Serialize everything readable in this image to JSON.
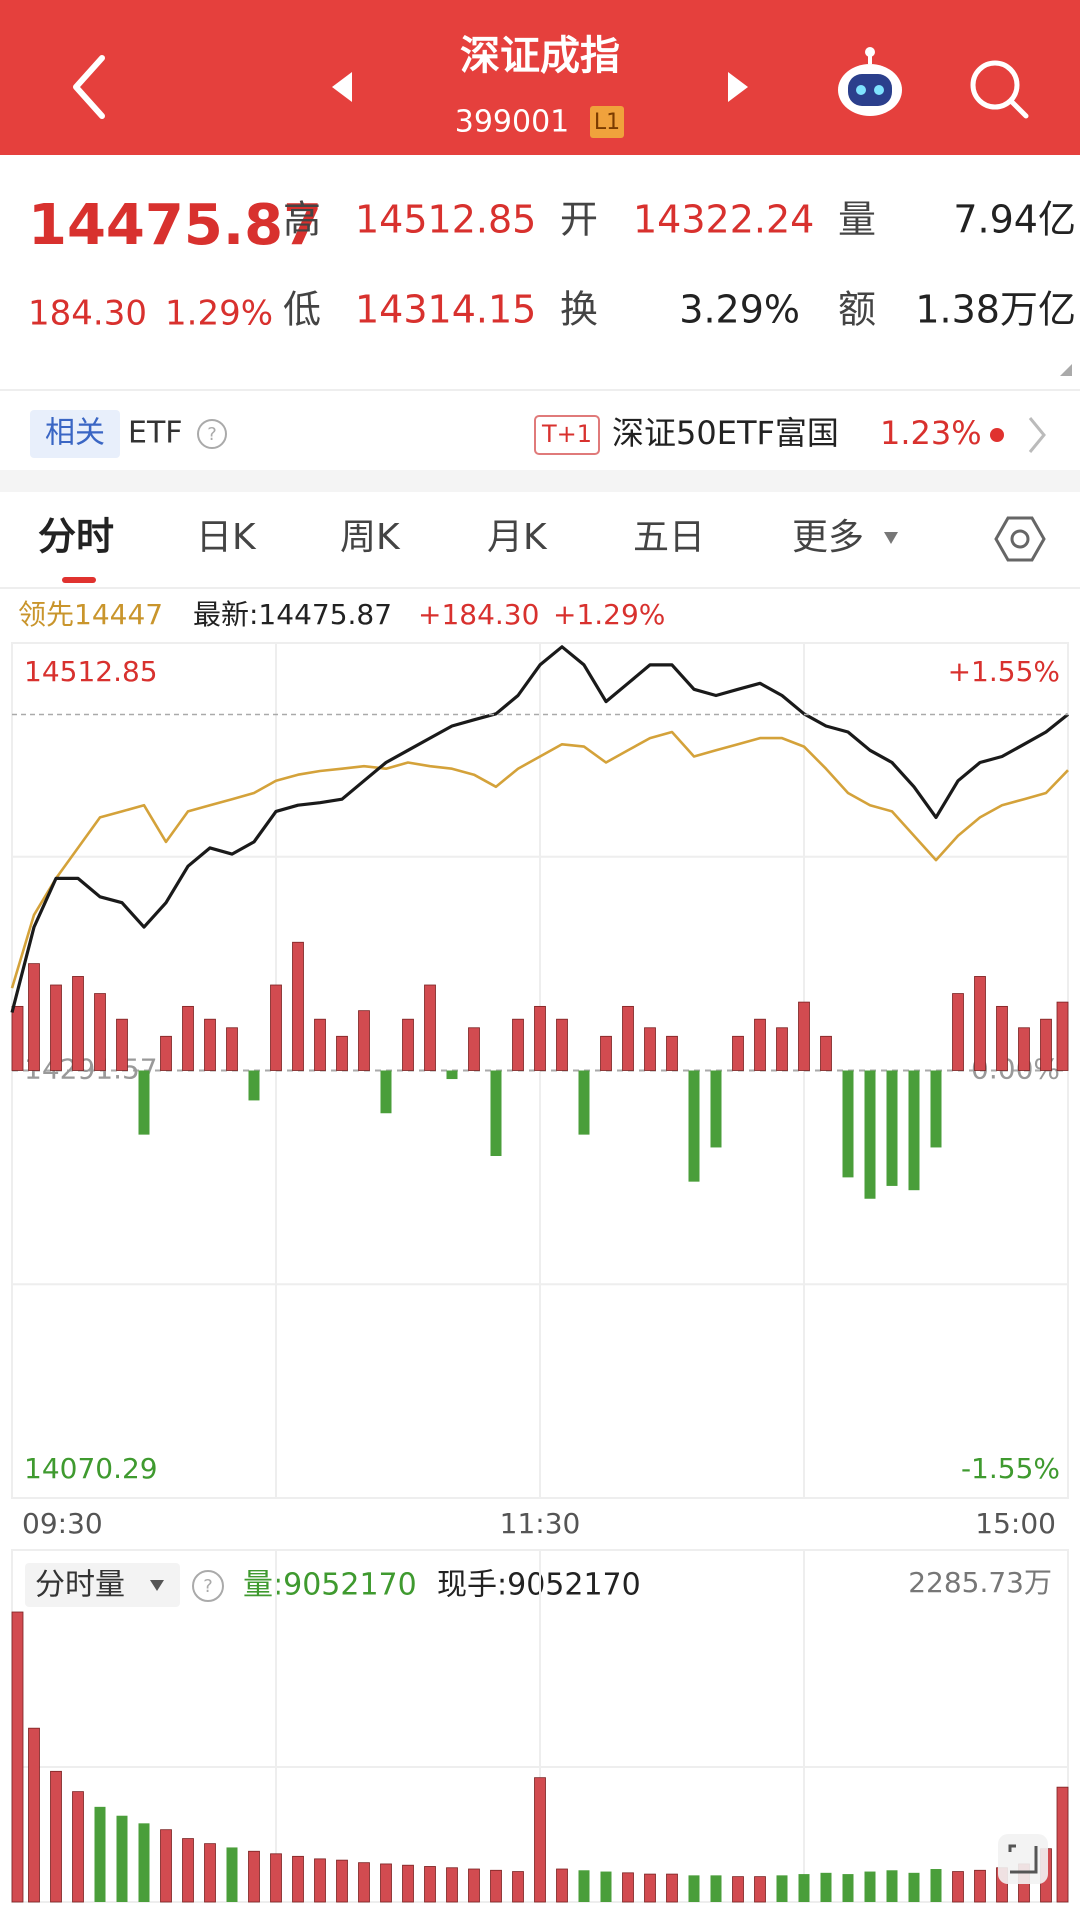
{
  "header": {
    "title": "深证成指",
    "code": "399001",
    "level": "L1"
  },
  "quote": {
    "price": "14475.87",
    "change": "184.30",
    "pct": "1.29%",
    "high_label": "高",
    "high": "14512.85",
    "open_label": "开",
    "open": "14322.24",
    "vol_label": "量",
    "vol": "7.94亿",
    "low_label": "低",
    "low": "14314.15",
    "turnover_label": "换",
    "turnover": "3.29%",
    "amount_label": "额",
    "amount": "1.38万亿"
  },
  "etf": {
    "tag": "相关",
    "label": "ETF",
    "badge": "T+1",
    "name": "深证50ETF富国",
    "pct": "1.23%"
  },
  "tabs": [
    "分时",
    "日K",
    "周K",
    "月K",
    "五日",
    "更多"
  ],
  "legend": {
    "lead": "领先14447",
    "latest": "最新:14475.87",
    "change": "+184.30",
    "pct": "+1.29%"
  },
  "volume_legend": {
    "title": "分时量",
    "vol": "量:9052170",
    "hand": "现手:9052170"
  },
  "chart_data": [
    {
      "type": "line",
      "categories": [
        "09:30",
        null,
        null,
        null,
        null,
        null,
        null,
        null,
        null,
        null,
        null,
        null,
        null,
        null,
        null,
        null,
        null,
        null,
        null,
        null,
        null,
        null,
        null,
        null,
        "11:30",
        null,
        null,
        null,
        null,
        null,
        null,
        null,
        null,
        null,
        null,
        null,
        null,
        null,
        null,
        null,
        null,
        null,
        null,
        null,
        null,
        null,
        null,
        null,
        "15:00"
      ],
      "series": [
        {
          "color": "#1a1a1a",
          "values": [
            14321.6,
            14365.8,
            14391.0,
            14391.0,
            14381.5,
            14378.4,
            14365.8,
            14378.4,
            14397.3,
            14406.8,
            14403.6,
            14409.9,
            14425.7,
            14428.9,
            14430.2,
            14432.0,
            14441.5,
            14451.0,
            14457.3,
            14463.6,
            14469.9,
            14473.1,
            14476.2,
            14485.7,
            14501.5,
            14510.9,
            14501.5,
            14482.5,
            14492.0,
            14501.5,
            14501.5,
            14488.9,
            14485.7,
            14488.9,
            14492.0,
            14485.7,
            14476.2,
            14469.9,
            14466.8,
            14457.3,
            14451.0,
            14438.4,
            14422.6,
            14441.5,
            14451.0,
            14454.1,
            14460.4,
            14466.8,
            14475.87
          ]
        },
        {
          "color": "#d4a23a",
          "values": [
            14334.2,
            14372.1,
            14391.0,
            14406.8,
            14422.6,
            14425.7,
            14428.9,
            14409.9,
            14425.7,
            14428.9,
            14432.0,
            14435.2,
            14441.5,
            14444.7,
            14446.6,
            14447.8,
            14449.1,
            14447.8,
            14451.0,
            14449.1,
            14447.8,
            14444.7,
            14438.4,
            14447.8,
            14454.1,
            14460.4,
            14459.2,
            14451.0,
            14457.3,
            14463.6,
            14466.8,
            14454.1,
            14457.3,
            14460.4,
            14463.6,
            14463.6,
            14459.2,
            14447.8,
            14435.2,
            14428.9,
            14425.7,
            14413.1,
            14400.5,
            14413.1,
            14422.6,
            14428.9,
            14432.0,
            14435.2,
            14447
          ]
        }
      ],
      "ylim": [
        14070.29,
        14512.85
      ],
      "yticks": [
        14070.29,
        14291.57,
        14512.85
      ],
      "y2lim": [
        -1.55,
        1.55
      ],
      "y2ticks": [
        {
          "value": -1.55,
          "label": "-1.55%"
        },
        {
          "value": 0,
          "label": "0.00%"
        },
        {
          "value": 1.55,
          "label": "+1.55%"
        }
      ],
      "up_color": "#d8312e",
      "down_color": "#3f9a2f"
    },
    {
      "type": "bar",
      "values": [
        15,
        25,
        20,
        22,
        18,
        12,
        -15,
        8,
        15,
        12,
        10,
        -7,
        20,
        30,
        12,
        8,
        14,
        -10,
        12,
        20,
        -2,
        10,
        -20,
        12,
        15,
        12,
        -15,
        8,
        15,
        10,
        8,
        -26,
        -18,
        8,
        12,
        10,
        16,
        8,
        -25,
        -30,
        -27,
        -28,
        -18,
        18,
        22,
        15,
        10,
        12,
        16
      ],
      "ylim": [
        -100,
        100
      ],
      "up_color": "#d24b50",
      "down_color": "#4a9e3a"
    },
    {
      "type": "bar",
      "values": [
        22857300,
        13700000,
        10300000,
        8700000,
        7500000,
        6800000,
        6200000,
        5700000,
        5000000,
        4600000,
        4300000,
        4000000,
        3800000,
        3600000,
        3400000,
        3300000,
        3100000,
        3000000,
        2900000,
        2800000,
        2700000,
        2600000,
        2500000,
        2400000,
        9800000,
        2600000,
        2500000,
        2400000,
        2300000,
        2200000,
        2200000,
        2100000,
        2100000,
        2000000,
        2000000,
        2100000,
        2200000,
        2300000,
        2200000,
        2400000,
        2500000,
        2300000,
        2600000,
        2400000,
        2500000,
        2700000,
        3000000,
        4200000,
        9052170
      ],
      "ylim": [
        0,
        22857300
      ],
      "yticks": [
        {
          "value": 22857300,
          "label": "2285.73万"
        }
      ],
      "up_color": "#d24b50",
      "down_color": "#4a9e3a"
    }
  ]
}
